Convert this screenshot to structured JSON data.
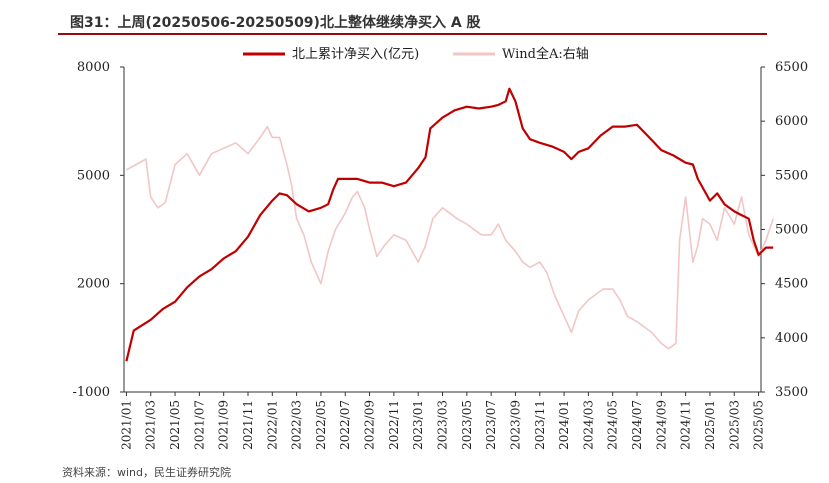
{
  "title": "图31：上周(20250506-20250509)北上整体继续净买入 A 股",
  "source": "资料来源：wind，民生证券研究院",
  "chart_data": {
    "type": "line",
    "legend_placement": "top-center",
    "grid": false,
    "x_categories": [
      "2021/01",
      "2021/03",
      "2021/05",
      "2021/07",
      "2021/09",
      "2021/11",
      "2022/01",
      "2022/03",
      "2022/05",
      "2022/07",
      "2022/09",
      "2022/11",
      "2023/01",
      "2023/03",
      "2023/05",
      "2023/07",
      "2023/09",
      "2023/11",
      "2024/01",
      "2024/03",
      "2024/05",
      "2024/07",
      "2024/09",
      "2024/11",
      "2025/01",
      "2025/03",
      "2025/05"
    ],
    "y_left": {
      "ticks": [
        "8000",
        "5000",
        "2000",
        "-1000"
      ],
      "range": [
        -1000,
        8000
      ]
    },
    "y_right": {
      "ticks": [
        "6500",
        "6000",
        "5500",
        "5000",
        "4500",
        "4000",
        "3500"
      ],
      "range": [
        3500,
        6500
      ]
    },
    "series": [
      {
        "name": "北上累计净买入(亿元)",
        "axis": "left",
        "color": "#c00000",
        "points": [
          [
            0,
            -150
          ],
          [
            0.3,
            700
          ],
          [
            1,
            1000
          ],
          [
            1.5,
            1300
          ],
          [
            2,
            1500
          ],
          [
            2.5,
            1900
          ],
          [
            3,
            2200
          ],
          [
            3.5,
            2400
          ],
          [
            4,
            2700
          ],
          [
            4.5,
            2900
          ],
          [
            5,
            3300
          ],
          [
            5.5,
            3900
          ],
          [
            6,
            4300
          ],
          [
            6.3,
            4500
          ],
          [
            6.6,
            4450
          ],
          [
            7,
            4200
          ],
          [
            7.5,
            4000
          ],
          [
            8,
            4100
          ],
          [
            8.3,
            4200
          ],
          [
            8.5,
            4600
          ],
          [
            8.7,
            4900
          ],
          [
            9,
            4900
          ],
          [
            9.5,
            4900
          ],
          [
            10,
            4800
          ],
          [
            10.5,
            4800
          ],
          [
            11,
            4700
          ],
          [
            11.5,
            4800
          ],
          [
            12,
            5200
          ],
          [
            12.3,
            5500
          ],
          [
            12.5,
            6300
          ],
          [
            13,
            6600
          ],
          [
            13.5,
            6800
          ],
          [
            14,
            6900
          ],
          [
            14.5,
            6850
          ],
          [
            15,
            6900
          ],
          [
            15.3,
            6950
          ],
          [
            15.6,
            7050
          ],
          [
            15.75,
            7400
          ],
          [
            16,
            7050
          ],
          [
            16.3,
            6300
          ],
          [
            16.6,
            6000
          ],
          [
            17,
            5900
          ],
          [
            17.5,
            5800
          ],
          [
            18,
            5650
          ],
          [
            18.3,
            5450
          ],
          [
            18.6,
            5650
          ],
          [
            19,
            5750
          ],
          [
            19.5,
            6100
          ],
          [
            20,
            6350
          ],
          [
            20.5,
            6350
          ],
          [
            21,
            6400
          ],
          [
            21.5,
            6050
          ],
          [
            22,
            5700
          ],
          [
            22.5,
            5550
          ],
          [
            23,
            5350
          ],
          [
            23.3,
            5300
          ],
          [
            23.5,
            4900
          ],
          [
            24,
            4300
          ],
          [
            24.3,
            4500
          ],
          [
            24.6,
            4200
          ],
          [
            25,
            4000
          ],
          [
            25.3,
            3900
          ],
          [
            25.6,
            3800
          ],
          [
            25.8,
            3200
          ],
          [
            26,
            2800
          ],
          [
            26.3,
            3000
          ],
          [
            26.6,
            3000
          ]
        ]
      },
      {
        "name": "Wind全A:右轴",
        "axis": "right",
        "color": "#f2c6c6",
        "points": [
          [
            0,
            5550
          ],
          [
            0.4,
            5600
          ],
          [
            0.8,
            5650
          ],
          [
            1,
            5300
          ],
          [
            1.3,
            5200
          ],
          [
            1.6,
            5250
          ],
          [
            2,
            5600
          ],
          [
            2.5,
            5700
          ],
          [
            3,
            5500
          ],
          [
            3.5,
            5700
          ],
          [
            4,
            5750
          ],
          [
            4.5,
            5800
          ],
          [
            5,
            5700
          ],
          [
            5.5,
            5850
          ],
          [
            5.8,
            5950
          ],
          [
            6,
            5850
          ],
          [
            6.3,
            5850
          ],
          [
            6.6,
            5600
          ],
          [
            6.8,
            5400
          ],
          [
            7,
            5100
          ],
          [
            7.3,
            4950
          ],
          [
            7.6,
            4700
          ],
          [
            8,
            4500
          ],
          [
            8.3,
            4800
          ],
          [
            8.6,
            5000
          ],
          [
            9,
            5150
          ],
          [
            9.3,
            5300
          ],
          [
            9.5,
            5350
          ],
          [
            9.8,
            5200
          ],
          [
            10,
            5000
          ],
          [
            10.3,
            4750
          ],
          [
            10.6,
            4850
          ],
          [
            11,
            4950
          ],
          [
            11.5,
            4900
          ],
          [
            12,
            4700
          ],
          [
            12.3,
            4850
          ],
          [
            12.6,
            5100
          ],
          [
            13,
            5200
          ],
          [
            13.3,
            5150
          ],
          [
            13.6,
            5100
          ],
          [
            14,
            5050
          ],
          [
            14.3,
            5000
          ],
          [
            14.6,
            4950
          ],
          [
            15,
            4950
          ],
          [
            15.3,
            5050
          ],
          [
            15.6,
            4900
          ],
          [
            16,
            4800
          ],
          [
            16.3,
            4700
          ],
          [
            16.6,
            4650
          ],
          [
            17,
            4700
          ],
          [
            17.3,
            4600
          ],
          [
            17.6,
            4400
          ],
          [
            18,
            4200
          ],
          [
            18.3,
            4050
          ],
          [
            18.6,
            4250
          ],
          [
            19,
            4350
          ],
          [
            19.3,
            4400
          ],
          [
            19.6,
            4450
          ],
          [
            20,
            4450
          ],
          [
            20.3,
            4350
          ],
          [
            20.6,
            4200
          ],
          [
            21,
            4150
          ],
          [
            21.3,
            4100
          ],
          [
            21.6,
            4050
          ],
          [
            22,
            3950
          ],
          [
            22.3,
            3900
          ],
          [
            22.6,
            3950
          ],
          [
            22.75,
            4900
          ],
          [
            23,
            5300
          ],
          [
            23.3,
            4700
          ],
          [
            23.5,
            4850
          ],
          [
            23.7,
            5100
          ],
          [
            24,
            5050
          ],
          [
            24.3,
            4900
          ],
          [
            24.6,
            5200
          ],
          [
            25,
            5050
          ],
          [
            25.3,
            5300
          ],
          [
            25.6,
            4950
          ],
          [
            26,
            4750
          ],
          [
            26.3,
            4900
          ],
          [
            26.6,
            5100
          ]
        ]
      }
    ]
  }
}
